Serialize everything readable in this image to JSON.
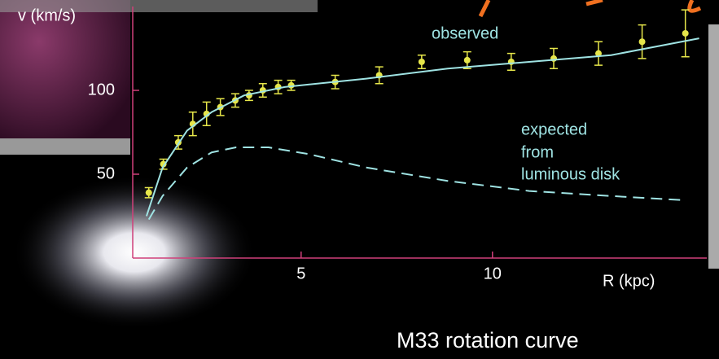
{
  "chart_data": {
    "type": "line",
    "title": "M33 rotation curve",
    "y_label": "v (km/s)",
    "x_label": "R (kpc)",
    "annotations": [
      "observed",
      "expected",
      "from",
      "luminous disk"
    ],
    "xlim": [
      0.6,
      15.6
    ],
    "ylim": [
      0,
      150
    ],
    "xticks": [
      5,
      10
    ],
    "yticks": [
      50,
      100
    ],
    "series": [
      {
        "style": "points",
        "color": "#e6e64a",
        "x": [
          1.02,
          1.4,
          1.79,
          2.17,
          2.53,
          2.89,
          3.28,
          3.64,
          4.0,
          4.4,
          4.74,
          5.89,
          7.04,
          8.15,
          9.34,
          10.49,
          11.6,
          12.77,
          13.91,
          15.04
        ],
        "values": [
          39,
          56,
          69,
          80,
          86,
          90,
          94,
          97,
          100,
          102,
          103,
          105,
          109,
          117,
          118,
          117,
          119,
          122,
          129,
          134
        ],
        "errors": [
          3,
          3,
          4,
          7,
          7,
          5,
          4,
          3,
          4,
          4,
          3,
          4,
          5,
          4,
          5,
          5,
          6,
          7,
          10,
          14
        ]
      },
      {
        "style": "solid",
        "color": "#9fe3e3",
        "x": [
          0.96,
          1.38,
          2.02,
          2.66,
          3.51,
          4.57,
          6.7,
          8.83,
          10.96,
          13.1,
          15.4
        ],
        "values": [
          25,
          54,
          76,
          87,
          97,
          102,
          107,
          113,
          117,
          121,
          131
        ]
      },
      {
        "style": "dashed",
        "color": "#9fe3e3",
        "x": [
          1.02,
          1.38,
          2.02,
          2.66,
          3.3,
          4.15,
          5.2,
          6.7,
          8.83,
          10.96,
          13.1,
          15.0
        ],
        "values": [
          23,
          37,
          54,
          63,
          66,
          66,
          62,
          54,
          46,
          40,
          37,
          34.5
        ]
      }
    ]
  }
}
